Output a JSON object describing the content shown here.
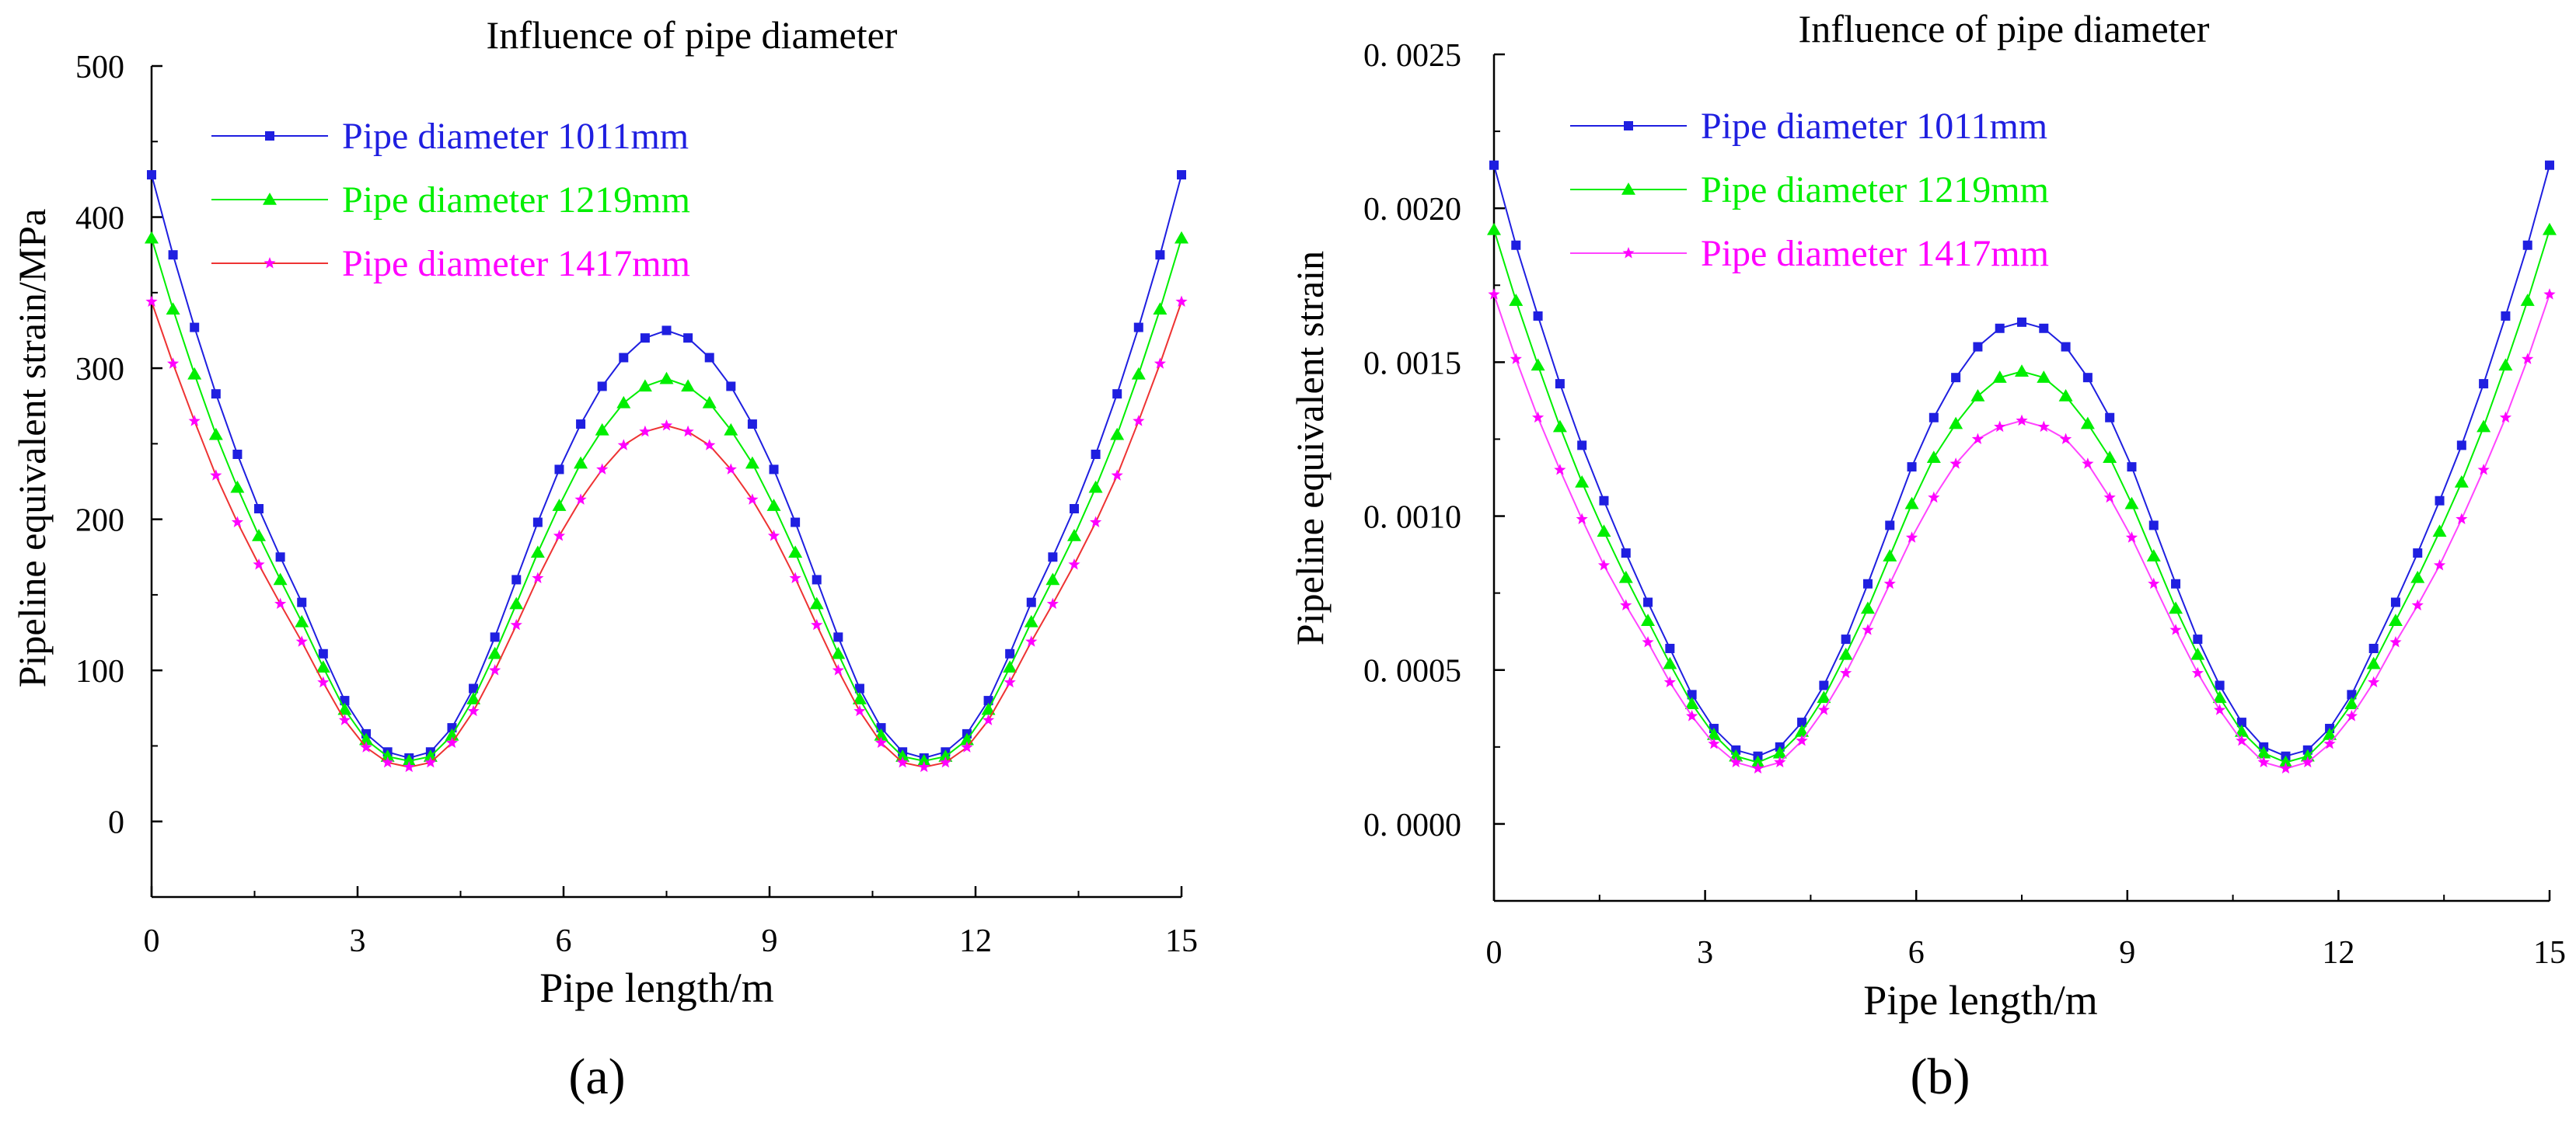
{
  "chart_data": [
    {
      "panel_label": "(a)",
      "type": "line",
      "title": "Influence of pipe diameter",
      "xlabel": "Pipe length/m",
      "ylabel": "Pipeline equivalent strain/MPa",
      "xlim": [
        0,
        15
      ],
      "ylim": [
        -50,
        500
      ],
      "xticks": [
        0,
        3,
        6,
        9,
        12,
        15
      ],
      "xtick_labels": [
        "0",
        "3",
        "6",
        "9",
        "12",
        "15"
      ],
      "yticks": [
        0,
        100,
        200,
        300,
        400,
        500
      ],
      "ytick_labels": [
        "0",
        "100",
        "200",
        "300",
        "400",
        "500"
      ],
      "grid": false,
      "legend_position": "top-left",
      "x": [
        0,
        0.3125,
        0.625,
        0.9375,
        1.25,
        1.5625,
        1.875,
        2.1875,
        2.5,
        2.8125,
        3.125,
        3.4375,
        3.75,
        4.0625,
        4.375,
        4.6875,
        5.0,
        5.3125,
        5.625,
        5.9375,
        6.25,
        6.5625,
        6.875,
        7.1875,
        7.5,
        7.8125,
        8.125,
        8.4375,
        8.75,
        9.0625,
        9.375,
        9.6875,
        10.0,
        10.3125,
        10.625,
        10.9375,
        11.25,
        11.5625,
        11.875,
        12.1875,
        12.5,
        12.8125,
        13.125,
        13.4375,
        13.75,
        14.0625,
        14.375,
        14.6875,
        15.0
      ],
      "series": [
        {
          "name": "Pipe diameter 1011mm",
          "color": "#1f1fe0",
          "marker": "square",
          "values": [
            428,
            375,
            327,
            283,
            243,
            207,
            175,
            145,
            111,
            80,
            58,
            46,
            42,
            46,
            62,
            88,
            122,
            160,
            198,
            233,
            263,
            288,
            307,
            320,
            325,
            320,
            307,
            288,
            263,
            233,
            198,
            160,
            122,
            88,
            62,
            46,
            42,
            46,
            58,
            80,
            111,
            145,
            175,
            207,
            243,
            283,
            327,
            375,
            428
          ]
        },
        {
          "name": "Pipe diameter 1219mm",
          "color": "#00ee00",
          "marker": "triangle",
          "values": [
            386,
            339,
            296,
            256,
            221,
            189,
            160,
            132,
            102,
            74,
            54,
            43,
            40,
            43,
            57,
            81,
            111,
            144,
            178,
            209,
            237,
            259,
            277,
            288,
            293,
            288,
            277,
            259,
            237,
            209,
            178,
            144,
            111,
            81,
            57,
            43,
            40,
            43,
            54,
            74,
            102,
            132,
            160,
            189,
            221,
            256,
            296,
            339,
            386
          ]
        },
        {
          "name": "Pipe diameter 1417mm",
          "color": "#ff00ff",
          "line_color": "#ee3333",
          "marker": "star",
          "values": [
            344,
            303,
            265,
            229,
            198,
            170,
            144,
            119,
            92,
            67,
            49,
            39,
            36,
            39,
            52,
            73,
            100,
            130,
            161,
            189,
            213,
            233,
            249,
            258,
            262,
            258,
            249,
            233,
            213,
            189,
            161,
            130,
            100,
            73,
            52,
            39,
            36,
            39,
            49,
            67,
            92,
            119,
            144,
            170,
            198,
            229,
            265,
            303,
            344
          ]
        }
      ]
    },
    {
      "panel_label": "(b)",
      "type": "line",
      "title": "Influence of pipe diameter",
      "xlabel": "Pipe length/m",
      "ylabel": "Pipeline equivalent strain",
      "xlim": [
        0,
        15
      ],
      "ylim": [
        -0.00025,
        0.0025
      ],
      "xticks": [
        0,
        3,
        6,
        9,
        12,
        15
      ],
      "xtick_labels": [
        "0",
        "3",
        "6",
        "9",
        "12",
        "15"
      ],
      "yticks": [
        0,
        0.0005,
        0.001,
        0.0015,
        0.002,
        0.0025
      ],
      "ytick_labels": [
        "0. 0000",
        "0. 0005",
        "0. 0010",
        "0. 0015",
        "0. 0020",
        "0. 0025"
      ],
      "grid": false,
      "legend_position": "top-left",
      "x": [
        0,
        0.3125,
        0.625,
        0.9375,
        1.25,
        1.5625,
        1.875,
        2.1875,
        2.5,
        2.8125,
        3.125,
        3.4375,
        3.75,
        4.0625,
        4.375,
        4.6875,
        5.0,
        5.3125,
        5.625,
        5.9375,
        6.25,
        6.5625,
        6.875,
        7.1875,
        7.5,
        7.8125,
        8.125,
        8.4375,
        8.75,
        9.0625,
        9.375,
        9.6875,
        10.0,
        10.3125,
        10.625,
        10.9375,
        11.25,
        11.5625,
        11.875,
        12.1875,
        12.5,
        12.8125,
        13.125,
        13.4375,
        13.75,
        14.0625,
        14.375,
        14.6875,
        15.0
      ],
      "series": [
        {
          "name": "Pipe diameter 1011mm",
          "color": "#1f1fe0",
          "marker": "square",
          "values": [
            0.00214,
            0.00188,
            0.00165,
            0.00143,
            0.00123,
            0.00105,
            0.00088,
            0.00072,
            0.00057,
            0.00042,
            0.00031,
            0.00024,
            0.00022,
            0.00025,
            0.00033,
            0.00045,
            0.0006,
            0.00078,
            0.00097,
            0.00116,
            0.00132,
            0.00145,
            0.00155,
            0.00161,
            0.00163,
            0.00161,
            0.00155,
            0.00145,
            0.00132,
            0.00116,
            0.00097,
            0.00078,
            0.0006,
            0.00045,
            0.00033,
            0.00025,
            0.00022,
            0.00024,
            0.00031,
            0.00042,
            0.00057,
            0.00072,
            0.00088,
            0.00105,
            0.00123,
            0.00143,
            0.00165,
            0.00188,
            0.00214
          ]
        },
        {
          "name": "Pipe diameter 1219mm",
          "color": "#00ee00",
          "marker": "triangle",
          "values": [
            0.00193,
            0.0017,
            0.00149,
            0.00129,
            0.00111,
            0.00095,
            0.0008,
            0.00066,
            0.00052,
            0.00039,
            0.00029,
            0.00022,
            0.0002,
            0.00023,
            0.0003,
            0.00041,
            0.00055,
            0.0007,
            0.00087,
            0.00104,
            0.00119,
            0.0013,
            0.00139,
            0.00145,
            0.00147,
            0.00145,
            0.00139,
            0.0013,
            0.00119,
            0.00104,
            0.00087,
            0.0007,
            0.00055,
            0.00041,
            0.0003,
            0.00023,
            0.0002,
            0.00022,
            0.00029,
            0.00039,
            0.00052,
            0.00066,
            0.0008,
            0.00095,
            0.00111,
            0.00129,
            0.00149,
            0.0017,
            0.00193
          ]
        },
        {
          "name": "Pipe diameter 1417mm",
          "color": "#ff00ff",
          "line_color": "#ff44ff",
          "marker": "star",
          "values": [
            0.00172,
            0.00151,
            0.00132,
            0.00115,
            0.00099,
            0.00084,
            0.00071,
            0.00059,
            0.00046,
            0.00035,
            0.00026,
            0.0002,
            0.00018,
            0.0002,
            0.00027,
            0.00037,
            0.00049,
            0.00063,
            0.00078,
            0.00093,
            0.00106,
            0.00117,
            0.00125,
            0.00129,
            0.00131,
            0.00129,
            0.00125,
            0.00117,
            0.00106,
            0.00093,
            0.00078,
            0.00063,
            0.00049,
            0.00037,
            0.00027,
            0.0002,
            0.00018,
            0.0002,
            0.00026,
            0.00035,
            0.00046,
            0.00059,
            0.00071,
            0.00084,
            0.00099,
            0.00115,
            0.00132,
            0.00151,
            0.00172
          ]
        }
      ]
    }
  ]
}
